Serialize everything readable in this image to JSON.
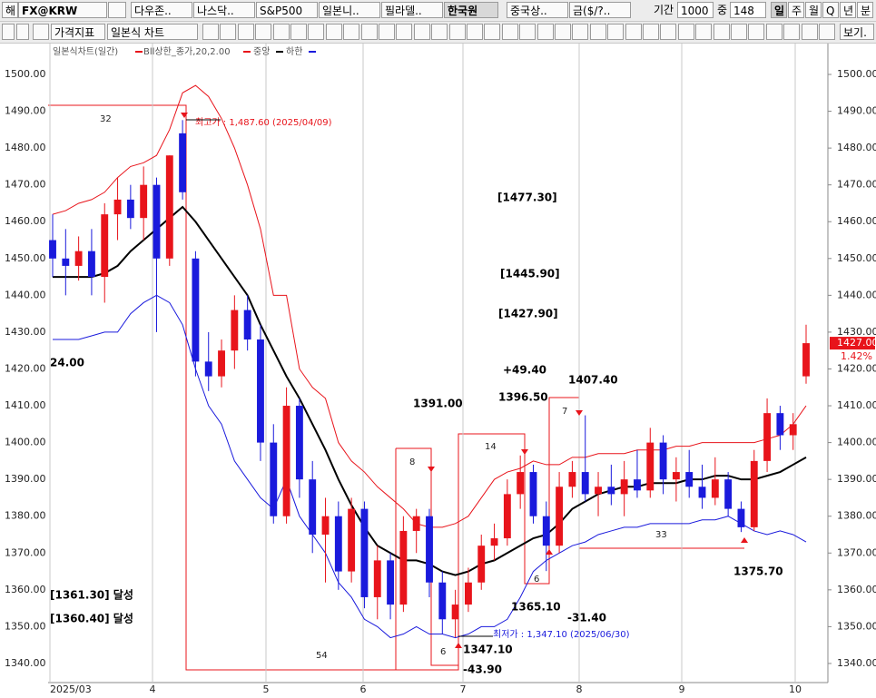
{
  "toolbar": {
    "row1": [
      "해",
      "FX@KRW",
      "다우존..",
      "나스닥..",
      "S&P500",
      "일본니..",
      "필라델..",
      "한국원",
      "중국상..",
      "금($/?.."
    ],
    "period_label": "기간",
    "period": "1000",
    "count_label": "중",
    "count": "148",
    "intervals": [
      "일",
      "주",
      "월",
      "Q",
      "년",
      "분"
    ],
    "row2": [
      "가격지표",
      "일본식 차트"
    ],
    "view": "보기."
  },
  "chart_data": {
    "type": "candlestick",
    "legend": {
      "title": "일본식차트(일간)",
      "upper": "Bll상한_종가,20,2.00",
      "mid": "중앙",
      "lower": "하한"
    },
    "x_labels": [
      "2025/03",
      "4",
      "5",
      "6",
      "7",
      "8",
      "9",
      "10"
    ],
    "open": [
      1455,
      1450,
      1448,
      1452,
      1445,
      1462,
      1466,
      1461,
      1470,
      1450,
      1484,
      1450,
      1422,
      1418,
      1425,
      1436,
      1428,
      1400,
      1380,
      1410,
      1390,
      1375,
      1380,
      1365,
      1382,
      1358,
      1368,
      1356,
      1376,
      1380,
      1362,
      1352,
      1356,
      1362,
      1372,
      1374,
      1386,
      1392,
      1380,
      1372,
      1388,
      1392,
      1386,
      1388,
      1386,
      1390,
      1387,
      1400,
      1390,
      1392,
      1388,
      1385,
      1390,
      1382,
      1377,
      1395,
      1408,
      1402,
      1418
    ],
    "high": [
      1462,
      1458,
      1456,
      1458,
      1465,
      1472,
      1470,
      1475,
      1472,
      1478,
      1487.6,
      1452,
      1430,
      1428,
      1440,
      1440,
      1432,
      1405,
      1415,
      1412,
      1395,
      1385,
      1384,
      1385,
      1384,
      1372,
      1370,
      1380,
      1382,
      1382,
      1365,
      1360,
      1366,
      1375,
      1378,
      1390,
      1396.5,
      1394,
      1384,
      1392,
      1395,
      1407.4,
      1392,
      1394,
      1395,
      1398,
      1404,
      1402,
      1396,
      1398,
      1394,
      1396,
      1392,
      1384,
      1398,
      1412,
      1410,
      1408,
      1432
    ],
    "low": [
      1445,
      1440,
      1444,
      1440,
      1438,
      1455,
      1458,
      1455,
      1430,
      1448,
      1466,
      1418,
      1414,
      1415,
      1420,
      1425,
      1395,
      1378,
      1378,
      1385,
      1370,
      1362,
      1360,
      1362,
      1355,
      1352,
      1352,
      1354,
      1370,
      1358,
      1348,
      1347.1,
      1354,
      1360,
      1368,
      1372,
      1382,
      1378,
      1365.1,
      1370,
      1385,
      1384,
      1380,
      1383,
      1380,
      1385,
      1385,
      1386,
      1384,
      1385,
      1382,
      1383,
      1380,
      1375.7,
      1376,
      1392,
      1398,
      1398,
      1416
    ],
    "close": [
      1450,
      1448,
      1452,
      1445,
      1462,
      1466,
      1461,
      1470,
      1450,
      1478,
      1468,
      1422,
      1418,
      1425,
      1436,
      1428,
      1400,
      1380,
      1410,
      1390,
      1375,
      1380,
      1365,
      1382,
      1358,
      1368,
      1356,
      1376,
      1380,
      1362,
      1352,
      1356,
      1362,
      1372,
      1374,
      1386,
      1392,
      1380,
      1372,
      1388,
      1392,
      1386,
      1388,
      1386,
      1390,
      1387,
      1400,
      1390,
      1392,
      1388,
      1385,
      1390,
      1382,
      1377,
      1395,
      1408,
      1402,
      1405,
      1427
    ],
    "upper": [
      1462,
      1463,
      1465,
      1466,
      1468,
      1472,
      1475,
      1476,
      1478,
      1485,
      1495,
      1497,
      1494,
      1488,
      1480,
      1470,
      1458,
      1440,
      1440,
      1420,
      1415,
      1412,
      1400,
      1395,
      1392,
      1388,
      1385,
      1382,
      1378,
      1377,
      1377,
      1378,
      1380,
      1385,
      1390,
      1392,
      1393,
      1395,
      1394,
      1394,
      1396,
      1396,
      1397,
      1397,
      1397,
      1398,
      1398,
      1398,
      1399,
      1399,
      1400,
      1400,
      1400,
      1400,
      1400,
      1401,
      1402,
      1405,
      1410
    ],
    "mid": [
      1445,
      1445,
      1445,
      1445,
      1446,
      1448,
      1452,
      1455,
      1458,
      1461,
      1464,
      1460,
      1455,
      1450,
      1445,
      1440,
      1432,
      1425,
      1418,
      1412,
      1405,
      1398,
      1390,
      1383,
      1377,
      1372,
      1370,
      1368,
      1368,
      1367,
      1365,
      1364,
      1365,
      1367,
      1368,
      1370,
      1372,
      1374,
      1375,
      1378,
      1382,
      1384,
      1386,
      1387,
      1388,
      1388,
      1389,
      1389,
      1389,
      1390,
      1390,
      1391,
      1391,
      1390,
      1390,
      1391,
      1392,
      1394,
      1396
    ],
    "lower": [
      1428,
      1428,
      1428,
      1429,
      1430,
      1430,
      1435,
      1438,
      1440,
      1438,
      1432,
      1420,
      1410,
      1405,
      1395,
      1390,
      1385,
      1382,
      1390,
      1380,
      1375,
      1370,
      1362,
      1358,
      1352,
      1350,
      1347,
      1348,
      1350,
      1348,
      1348,
      1347,
      1348,
      1350,
      1350,
      1352,
      1358,
      1365,
      1368,
      1370,
      1372,
      1373,
      1375,
      1376,
      1377,
      1377,
      1378,
      1378,
      1378,
      1378,
      1379,
      1379,
      1380,
      1378,
      1376,
      1375,
      1376,
      1375,
      1373
    ],
    "up_color": "#e8141b",
    "down_color": "#1a1adc",
    "upper_color": "#e8141b",
    "mid_color": "#000000",
    "lower_color": "#1a1adc",
    "ylim": [
      1335,
      1505
    ],
    "yticks": [
      {
        "value": 1340,
        "label": "1340.00"
      },
      {
        "value": 1350,
        "label": "1350.00"
      },
      {
        "value": 1360,
        "label": "1360.00"
      },
      {
        "value": 1370,
        "label": "1370.00"
      },
      {
        "value": 1380,
        "label": "1380.00"
      },
      {
        "value": 1390,
        "label": "1390.00"
      },
      {
        "value": 1400,
        "label": "1400.00"
      },
      {
        "value": 1410,
        "label": "1410.00"
      },
      {
        "value": 1420,
        "label": "1420.00"
      },
      {
        "value": 1430,
        "label": "1430.00"
      },
      {
        "value": 1440,
        "label": "1440.00"
      },
      {
        "value": 1450,
        "label": "1450.00"
      },
      {
        "value": 1460,
        "label": "1460.00"
      },
      {
        "value": 1470,
        "label": "1470.00"
      },
      {
        "value": 1480,
        "label": "1480.00"
      },
      {
        "value": 1490,
        "label": "1490.00"
      },
      {
        "value": 1500,
        "label": "1500.00"
      }
    ],
    "last_price": {
      "value": 1427,
      "label": "1427.00"
    },
    "last_change": "1.42%",
    "annotations": [
      "32",
      "최고가 : 1,487.60 (2025/04/09)",
      "[1477.30]",
      "[1445.90]",
      "[1427.90]",
      "24.00",
      "+49.40",
      "1407.40",
      "1391.00",
      "1396.50",
      "8",
      "14",
      "7",
      "6",
      "33",
      "1375.70",
      "1365.10",
      "-31.40",
      "[1361.30] 달성",
      "[1360.40] 달성",
      "54",
      "6",
      "1347.10",
      "-43.90",
      "최저가 : 1,347.10 (2025/06/30)"
    ]
  }
}
